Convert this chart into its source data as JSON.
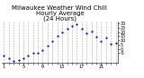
{
  "title": "Milwaukee Weather Wind Chill\nHourly Average\n(24 Hours)",
  "hours": [
    1,
    2,
    3,
    4,
    5,
    6,
    7,
    8,
    9,
    10,
    11,
    12,
    13,
    14,
    15,
    16,
    17,
    18,
    19,
    20,
    21,
    22,
    23,
    24
  ],
  "wind_chill": [
    -8,
    -11,
    -14,
    -13,
    -11,
    -8,
    -5,
    -5,
    -2,
    4,
    9,
    15,
    20,
    24,
    27,
    29,
    24,
    19,
    21,
    14,
    9,
    13,
    6,
    7
  ],
  "dot_color": "#0000cc",
  "bg_color": "#ffffff",
  "grid_color": "#aaaaaa",
  "title_color": "#000000",
  "ylim": [
    -16,
    32
  ],
  "ytick_values": [
    -5,
    0,
    5,
    10,
    15,
    20,
    25,
    30
  ],
  "ytick_labels": [
    "-5",
    "0",
    "5",
    "10",
    "15",
    "20",
    "25",
    "30"
  ],
  "title_fontsize": 5.0,
  "tick_fontsize": 3.5,
  "marker_size": 1.2,
  "grid_linewidth": 0.4,
  "xtick_every": [
    1,
    5,
    9,
    13,
    17,
    21
  ]
}
